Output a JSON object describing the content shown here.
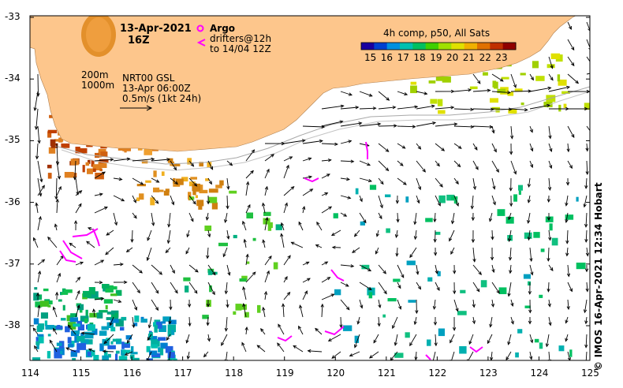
{
  "map": {
    "date": "13-Apr-2021",
    "time": "16Z",
    "argo_label": "Argo",
    "drifters_line1": "drifters@12h",
    "drifters_line2": "to 14/04 12Z",
    "product": "4h comp, p50, All Sats",
    "isobath_shallow": "200m",
    "isobath_deep": "1000m",
    "gsl_line1": "NRT00 GSL",
    "gsl_line2": "13-Apr 06:00Z",
    "scale_label": "0.5m/s (1kt 24h)",
    "credit": "© IMOS 16-Apr-2021 12:34 Hobart",
    "colorbar_ticks": [
      "15",
      "16",
      "17",
      "18",
      "19",
      "20",
      "21",
      "22",
      "23"
    ],
    "x_ticks": [
      "114",
      "115",
      "116",
      "117",
      "118",
      "119",
      "120",
      "121",
      "122",
      "123",
      "124",
      "125"
    ],
    "y_ticks": [
      "-33",
      "-34",
      "-35",
      "-36",
      "-37",
      "-38"
    ],
    "colors": {
      "land": "#fdc68c",
      "arrow": "#000000",
      "drifter": "#ff00ff",
      "isobath": "#a8a8a8"
    },
    "colorbar_colors": [
      "#1a00a0",
      "#0040d0",
      "#0090e0",
      "#00c0b0",
      "#00c060",
      "#40d000",
      "#a0e000",
      "#e0e000",
      "#f0b000",
      "#e07000",
      "#c03000",
      "#900000"
    ]
  }
}
